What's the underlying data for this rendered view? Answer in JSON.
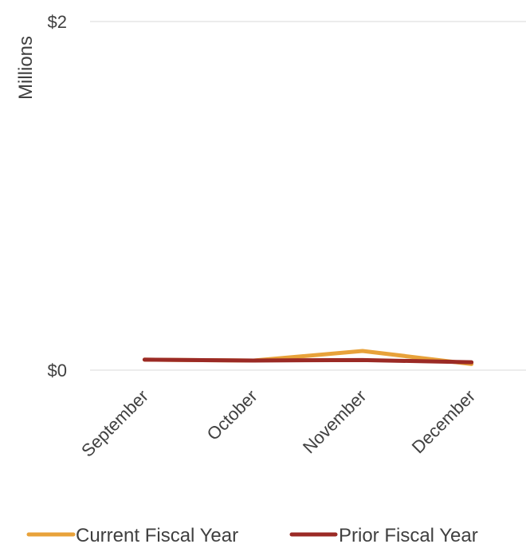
{
  "chart_data": {
    "type": "line",
    "categories": [
      "September",
      "October",
      "November",
      "December"
    ],
    "series": [
      {
        "name": "Current Fiscal Year",
        "color": "#E8A23A",
        "values": [
          0.06,
          0.055,
          0.11,
          0.035
        ]
      },
      {
        "name": "Prior Fiscal Year",
        "color": "#9B2A25",
        "values": [
          0.06,
          0.055,
          0.058,
          0.045
        ]
      }
    ],
    "ylabel": "Millions",
    "ylim": [
      0,
      2
    ],
    "yticks": [
      {
        "value": 0,
        "label": "$0"
      },
      {
        "value": 2,
        "label": "$2"
      }
    ],
    "grid": true,
    "legend_position": "bottom"
  }
}
